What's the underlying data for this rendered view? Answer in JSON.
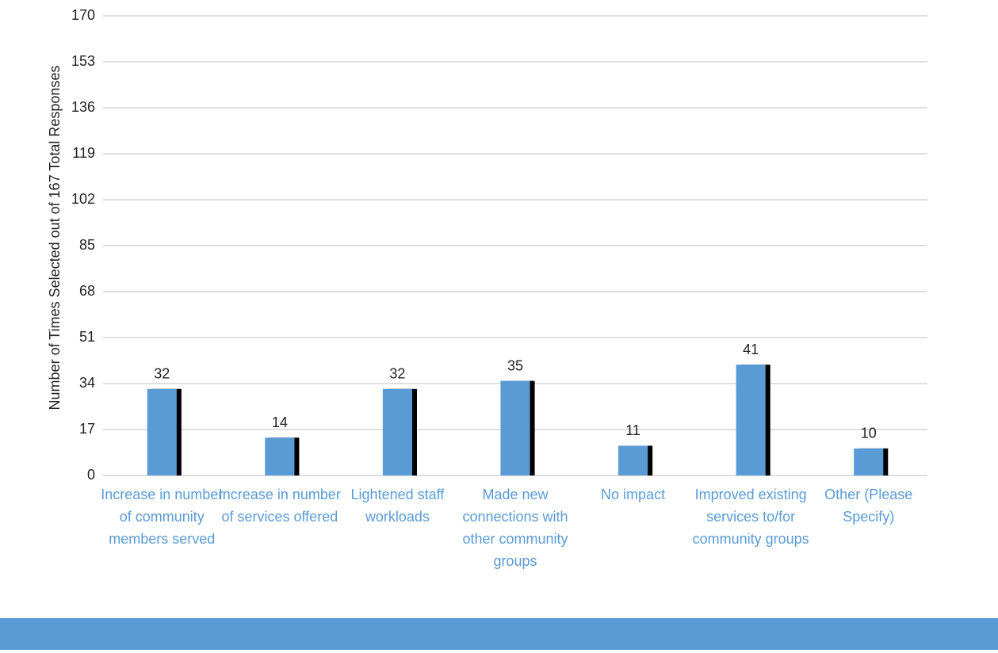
{
  "chart_data": {
    "type": "bar",
    "y_label": "Number of Times Selected out of 167 Total Responses",
    "categories": [
      "Increase in number of community members served",
      "Increase in number of services offered",
      "Lightened staff workloads",
      "Made new connections with other community groups",
      "No impact",
      "Improved existing services to/for community groups",
      "Other (Please Specify)"
    ],
    "values": [
      32,
      14,
      32,
      35,
      11,
      41,
      10
    ],
    "color": "#5b9bd5",
    "ylim": [
      0,
      170
    ],
    "yticks": [
      0,
      17,
      34,
      51,
      68,
      85,
      102,
      119,
      136,
      153,
      170
    ],
    "grid": true
  }
}
